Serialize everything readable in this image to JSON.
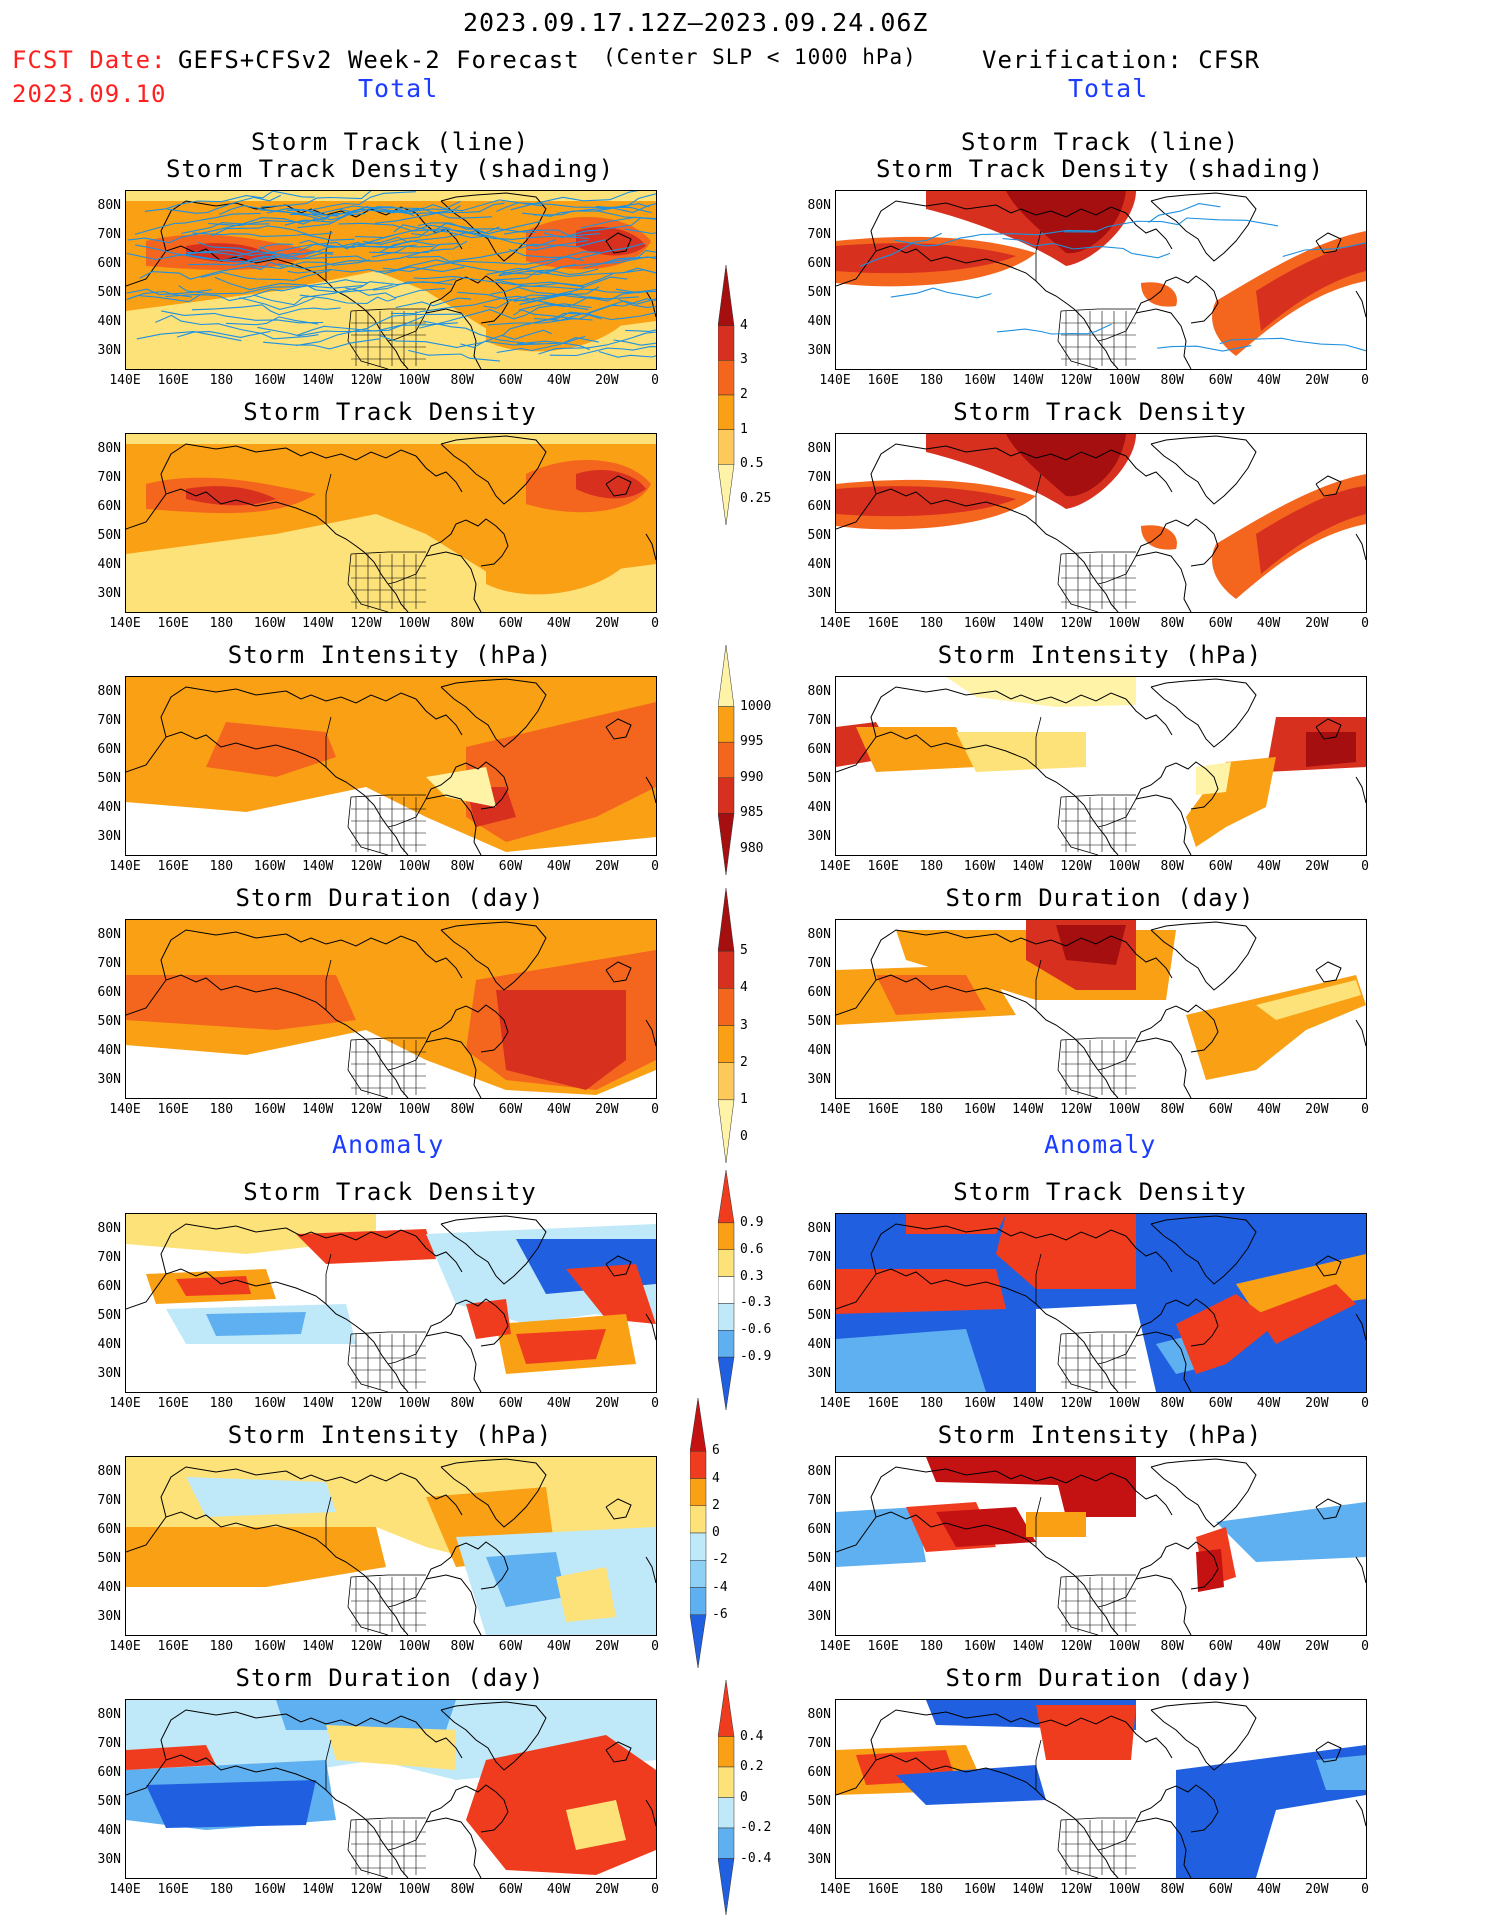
{
  "header": {
    "period": "2023.09.17.12Z–2023.09.24.06Z",
    "fcst_label": "FCST Date:",
    "fcst_date": "2023.09.10",
    "forecast_title": "GEFS+CFSv2 Week-2 Forecast",
    "center_slp": "(Center SLP < 1000 hPa)",
    "verification": "Verification: CFSR"
  },
  "sections": {
    "total": "Total",
    "anomaly": "Anomaly"
  },
  "panel_titles": {
    "track_line": "Storm Track (line)",
    "track_shading": "Storm Track Density (shading)",
    "density": "Storm Track Density",
    "intensity": "Storm Intensity (hPa)",
    "duration": "Storm Duration (day)"
  },
  "axes": {
    "x_ticks": [
      "140E",
      "160E",
      "180",
      "160W",
      "140W",
      "120W",
      "100W",
      "80W",
      "60W",
      "40W",
      "20W",
      "0"
    ],
    "y_ticks": [
      "80N",
      "70N",
      "60N",
      "50N",
      "40N",
      "30N"
    ]
  },
  "colorbars": {
    "density_total": {
      "labels": [
        "4",
        "3",
        "2",
        "1",
        "0.5",
        "0.25"
      ],
      "colors": [
        "#a50f0f",
        "#d7301f",
        "#f4661e",
        "#f9a014",
        "#fdc95a",
        "#fff3a8"
      ]
    },
    "intensity_total": {
      "labels": [
        "1000",
        "995",
        "990",
        "985",
        "980"
      ],
      "colors": [
        "#fff3a8",
        "#f9a014",
        "#f4661e",
        "#d7301f",
        "#a50f0f"
      ]
    },
    "duration_total": {
      "labels": [
        "5",
        "4",
        "3",
        "2",
        "1",
        "0"
      ],
      "colors": [
        "#a50f0f",
        "#d7301f",
        "#f4661e",
        "#f9a014",
        "#fdc95a",
        "#fff3a8"
      ]
    },
    "density_anom": {
      "labels": [
        "0.9",
        "0.6",
        "0.3",
        "-0.3",
        "-0.6",
        "-0.9"
      ],
      "colors": [
        "#f03c1e",
        "#f9a014",
        "#fde27a",
        "#ffffff",
        "#bfe8f8",
        "#5fb0f0",
        "#2060e0"
      ]
    },
    "intensity_anom": {
      "labels": [
        "6",
        "4",
        "2",
        "0",
        "-2",
        "-4",
        "-6"
      ],
      "colors": [
        "#c41212",
        "#f03c1e",
        "#f9a014",
        "#fde27a",
        "#bfe8f8",
        "#8fd0f5",
        "#5fb0f0",
        "#2060e0"
      ]
    },
    "duration_anom": {
      "labels": [
        "0.4",
        "0.2",
        "0",
        "-0.2",
        "-0.4"
      ],
      "colors": [
        "#f03c1e",
        "#f9a014",
        "#fde27a",
        "#bfe8f8",
        "#5fb0f0",
        "#2060e0"
      ]
    }
  },
  "colors": {
    "forecast_date": "#ff1f1f",
    "section_label": "#1c3cff",
    "track_line": "#1e90e0"
  }
}
